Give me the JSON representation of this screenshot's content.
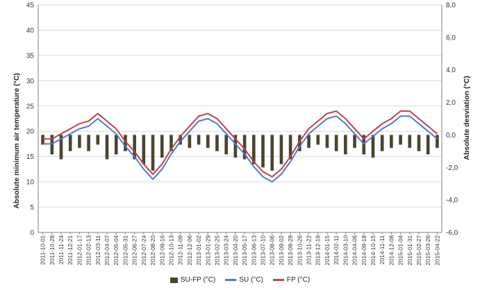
{
  "chart_data": {
    "type": "line",
    "ylabel": "Absolute minimum air temperature (°C)",
    "y2label": "Absolute desviation (°C)",
    "ylim": [
      0,
      45
    ],
    "y2lim": [
      -6,
      8
    ],
    "yticks": [
      "0",
      "5",
      "10",
      "15",
      "20",
      "25",
      "30",
      "35",
      "40",
      "45"
    ],
    "y2ticks": [
      "-6,0",
      "-4,0",
      "-2,0",
      "0,0",
      "2,0",
      "4,0",
      "6,0",
      "8,0"
    ],
    "grid": true,
    "legend_position": "bottom",
    "categories": [
      "2011-10-01",
      "2011-10-28",
      "2011-11-24",
      "2011-12-21",
      "2012-01-17",
      "2012-02-13",
      "2012-03-11",
      "2012-04-07",
      "2012-05-04",
      "2012-05-31",
      "2012-06-27",
      "2012-07-24",
      "2012-08-20",
      "2012-09-16",
      "2012-10-13",
      "2012-11-09",
      "2012-12-06",
      "2013-01-02",
      "2013-01-29",
      "2013-02-25",
      "2013-03-24",
      "2013-04-20",
      "2013-05-17",
      "2013-06-13",
      "2013-07-10",
      "2013-08-06",
      "2013-09-02",
      "2013-09-29",
      "2013-10-26",
      "2013-11-22",
      "2013-12-19",
      "2014-01-15",
      "2014-02-11",
      "2014-03-10",
      "2014-04-06",
      "2014-09-18",
      "2014-10-15",
      "2014-11-11",
      "2014-12-08",
      "2015-01-04",
      "2015-01-31",
      "2015-02-27",
      "2015-03-26",
      "2015-04-22"
    ],
    "series": [
      {
        "name": "SU-FP (°C)",
        "axis": "secondary",
        "type": "column",
        "color": "#4a4530",
        "values": [
          -0.6,
          -1.2,
          -1.5,
          -1.0,
          -0.8,
          -1.0,
          -0.6,
          -1.5,
          -1.2,
          -1.0,
          -1.5,
          -1.8,
          -2.2,
          -1.4,
          -1.0,
          -0.6,
          -0.8,
          -0.6,
          -0.8,
          -1.0,
          -1.2,
          -1.4,
          -1.5,
          -1.8,
          -2.0,
          -2.2,
          -1.8,
          -1.5,
          -1.0,
          -0.8,
          -0.6,
          -0.8,
          -1.0,
          -1.2,
          -0.8,
          -1.2,
          -1.4,
          -1.0,
          -0.8,
          -0.6,
          -0.8,
          -1.0,
          -1.2,
          -0.8
        ]
      },
      {
        "name": "SU (°C)",
        "axis": "primary",
        "color": "#4a7ec2",
        "values": [
          17.5,
          17.5,
          18.5,
          19.5,
          20.5,
          21.0,
          22.5,
          21.0,
          19.5,
          17.0,
          15.0,
          12.5,
          10.5,
          12.5,
          15.5,
          18.0,
          20.0,
          22.0,
          22.5,
          21.5,
          19.5,
          17.5,
          15.5,
          13.0,
          11.0,
          10.0,
          11.5,
          14.0,
          17.0,
          19.5,
          21.0,
          22.5,
          23.0,
          21.5,
          19.5,
          17.5,
          19.0,
          20.5,
          21.5,
          23.0,
          23.0,
          21.5,
          20.0,
          18.5
        ]
      },
      {
        "name": "FP (°C)",
        "axis": "primary",
        "color": "#c0404a",
        "values": [
          18.5,
          18.5,
          19.5,
          20.5,
          21.5,
          22.0,
          23.5,
          22.0,
          20.5,
          18.0,
          16.0,
          13.5,
          11.5,
          13.5,
          16.5,
          19.0,
          21.0,
          23.0,
          23.5,
          22.5,
          20.5,
          18.5,
          16.5,
          14.0,
          12.0,
          11.0,
          12.5,
          15.0,
          18.0,
          20.5,
          22.0,
          23.5,
          24.0,
          22.5,
          20.5,
          18.5,
          20.0,
          21.5,
          22.5,
          24.0,
          24.0,
          22.5,
          21.0,
          19.5
        ]
      }
    ]
  }
}
